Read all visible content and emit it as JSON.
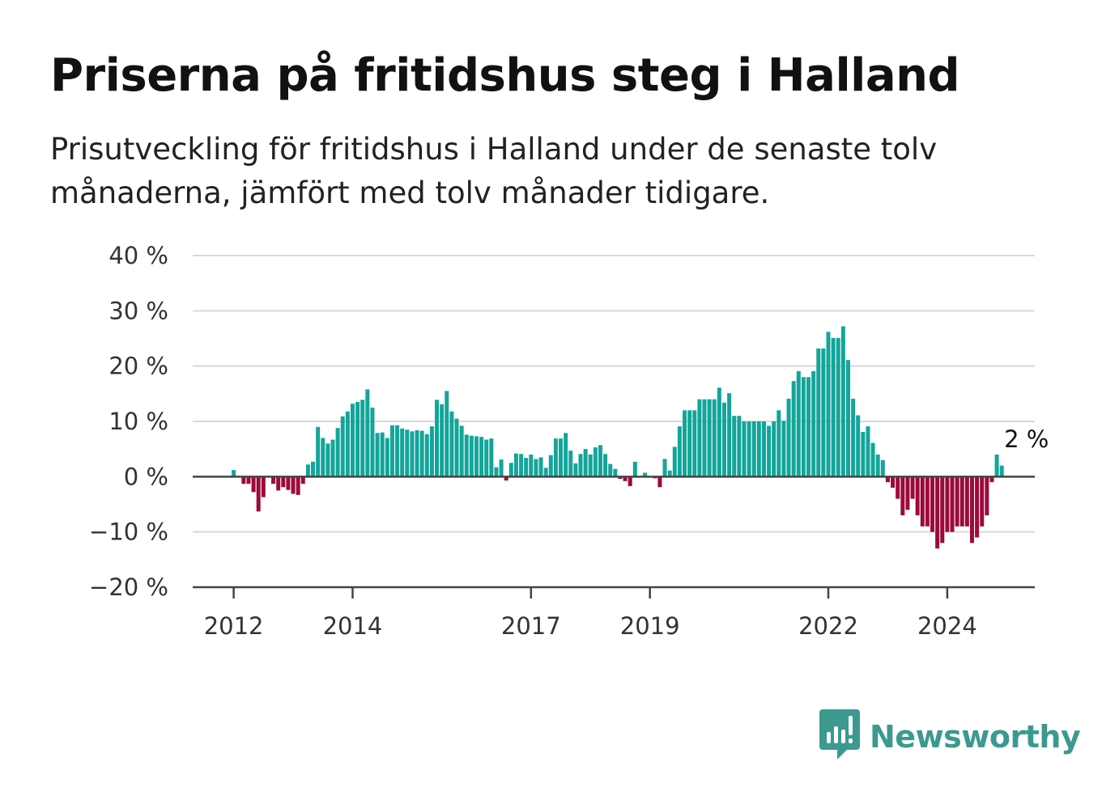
{
  "title": "Priserna på fritidshus steg i Halland",
  "subtitle": "Prisutveckling för fritidshus i Halland under de senaste tolv månaderna, jämfört med tolv månader tidigare.",
  "brand": "Newsworthy",
  "colors": {
    "positive": "#13a59a",
    "negative": "#9c0a3c",
    "grid": "#d9d9d9",
    "axis": "#444444",
    "brand": "#3b9990"
  },
  "icons": {
    "logo": "bar-chart-speech-bubble-icon"
  },
  "chart_data": {
    "type": "bar",
    "title": "Priserna på fritidshus steg i Halland",
    "subtitle": "Prisutveckling för fritidshus i Halland under de senaste tolv månaderna, jämfört med tolv månader tidigare.",
    "xlabel": "",
    "ylabel": "",
    "y_unit": "%",
    "ylim": [
      -20,
      40
    ],
    "yticks": [
      40,
      30,
      20,
      10,
      0,
      -10,
      -20
    ],
    "ytick_labels": [
      "40 %",
      "30 %",
      "20 %",
      "10 %",
      "0 %",
      "−10 %",
      "−20 %"
    ],
    "xticks": [
      "2012",
      "2014",
      "2017",
      "2019",
      "2022",
      "2024"
    ],
    "xtick_positions": [
      "2012-01",
      "2014-01",
      "2017-01",
      "2019-01",
      "2022-01",
      "2024-01"
    ],
    "grid": true,
    "legend": "none",
    "x_start": "2012-01",
    "annotations": [
      {
        "x": "2025-04",
        "text": "2 %"
      }
    ],
    "values": [
      1.2,
      0,
      -1.3,
      -1.3,
      -2.8,
      -6.3,
      -3.7,
      0,
      -1.3,
      -2.5,
      -1.9,
      -2.4,
      -3.1,
      -3.3,
      -1.3,
      2.2,
      2.7,
      9,
      7,
      6,
      6.7,
      8.8,
      10.9,
      11.8,
      13.2,
      13.5,
      13.9,
      15.8,
      12.5,
      7.9,
      8,
      7,
      9.3,
      9.3,
      8.7,
      8.5,
      8.2,
      8.4,
      8.3,
      7.7,
      9.1,
      13.9,
      13.1,
      15.5,
      11.8,
      10.5,
      9.2,
      7.6,
      7.4,
      7.3,
      7.2,
      6.7,
      6.9,
      1.7,
      3.1,
      -0.7,
      2.5,
      4.2,
      4.1,
      3.4,
      4,
      3.2,
      3.5,
      1.6,
      3.9,
      6.9,
      6.9,
      7.9,
      4.7,
      2.4,
      4.1,
      5,
      4,
      5.3,
      5.7,
      4.1,
      2.3,
      1.4,
      -0.4,
      -0.8,
      -1.7,
      2.7,
      0,
      0.7,
      0,
      -0.3,
      -1.9,
      3.2,
      1.1,
      5.4,
      9.1,
      12,
      12,
      12,
      14,
      14,
      14,
      14,
      16.1,
      13.4,
      15.1,
      11,
      11,
      10,
      10,
      10,
      10,
      10,
      9.2,
      10,
      12,
      10.1,
      14.1,
      17.3,
      19.1,
      18,
      18,
      19.1,
      23.2,
      23.2,
      26.2,
      25.1,
      25.1,
      27.2,
      21.1,
      14.1,
      11.1,
      8.1,
      9.1,
      6.1,
      4,
      3,
      -1,
      -2,
      -4,
      -7,
      -6,
      -4,
      -7,
      -9,
      -9,
      -10,
      -13,
      -12,
      -10,
      -10,
      -9,
      -9,
      -9,
      -12,
      -11,
      -9,
      -7,
      -1,
      4,
      2
    ]
  }
}
